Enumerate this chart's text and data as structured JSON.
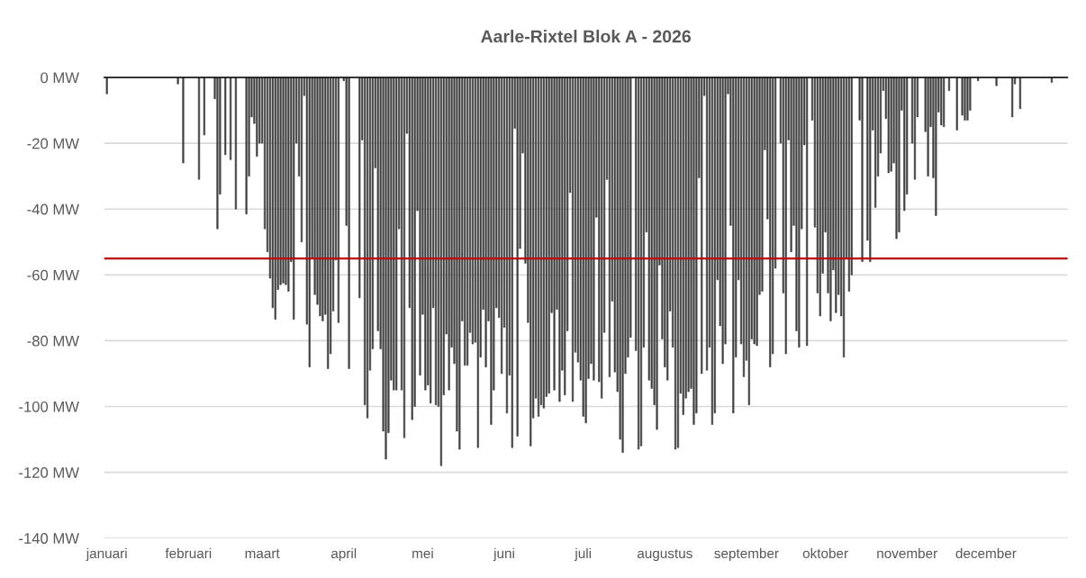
{
  "chart_data": {
    "type": "bar",
    "title": "Aarle-Rixtel Blok A - 2026",
    "x": [
      "2026-01-01",
      "2026-01-02",
      "2026-01-03",
      "2026-01-04",
      "2026-01-05",
      "2026-01-06",
      "2026-01-07",
      "2026-01-08",
      "2026-01-09",
      "2026-01-10",
      "2026-01-11",
      "2026-01-12",
      "2026-01-13",
      "2026-01-14",
      "2026-01-15",
      "2026-01-16",
      "2026-01-17",
      "2026-01-18",
      "2026-01-19",
      "2026-01-20",
      "2026-01-21",
      "2026-01-22",
      "2026-01-23",
      "2026-01-24",
      "2026-01-25",
      "2026-01-26",
      "2026-01-27",
      "2026-01-28",
      "2026-01-29",
      "2026-01-30",
      "2026-01-31",
      "2026-02-01",
      "2026-02-02",
      "2026-02-03",
      "2026-02-04",
      "2026-02-05",
      "2026-02-06",
      "2026-02-07",
      "2026-02-08",
      "2026-02-09",
      "2026-02-10",
      "2026-02-11",
      "2026-02-12",
      "2026-02-13",
      "2026-02-14",
      "2026-02-15",
      "2026-02-16",
      "2026-02-17",
      "2026-02-18",
      "2026-02-19",
      "2026-02-20",
      "2026-02-21",
      "2026-02-22",
      "2026-02-23",
      "2026-02-24",
      "2026-02-25",
      "2026-02-26",
      "2026-02-27",
      "2026-02-28",
      "2026-03-01",
      "2026-03-02",
      "2026-03-03",
      "2026-03-04",
      "2026-03-05",
      "2026-03-06",
      "2026-03-07",
      "2026-03-08",
      "2026-03-09",
      "2026-03-10",
      "2026-03-11",
      "2026-03-12",
      "2026-03-13",
      "2026-03-14",
      "2026-03-15",
      "2026-03-16",
      "2026-03-17",
      "2026-03-18",
      "2026-03-19",
      "2026-03-20",
      "2026-03-21",
      "2026-03-22",
      "2026-03-23",
      "2026-03-24",
      "2026-03-25",
      "2026-03-26",
      "2026-03-27",
      "2026-03-28",
      "2026-03-29",
      "2026-03-30",
      "2026-03-31",
      "2026-04-01",
      "2026-04-02",
      "2026-04-03",
      "2026-04-04",
      "2026-04-05",
      "2026-04-06",
      "2026-04-07",
      "2026-04-08",
      "2026-04-09",
      "2026-04-10",
      "2026-04-11",
      "2026-04-12",
      "2026-04-13",
      "2026-04-14",
      "2026-04-15",
      "2026-04-16",
      "2026-04-17",
      "2026-04-18",
      "2026-04-19",
      "2026-04-20",
      "2026-04-21",
      "2026-04-22",
      "2026-04-23",
      "2026-04-24",
      "2026-04-25",
      "2026-04-26",
      "2026-04-27",
      "2026-04-28",
      "2026-04-29",
      "2026-04-30",
      "2026-05-01",
      "2026-05-02",
      "2026-05-03",
      "2026-05-04",
      "2026-05-05",
      "2026-05-06",
      "2026-05-07",
      "2026-05-08",
      "2026-05-09",
      "2026-05-10",
      "2026-05-11",
      "2026-05-12",
      "2026-05-13",
      "2026-05-14",
      "2026-05-15",
      "2026-05-16",
      "2026-05-17",
      "2026-05-18",
      "2026-05-19",
      "2026-05-20",
      "2026-05-21",
      "2026-05-22",
      "2026-05-23",
      "2026-05-24",
      "2026-05-25",
      "2026-05-26",
      "2026-05-27",
      "2026-05-28",
      "2026-05-29",
      "2026-05-30",
      "2026-05-31",
      "2026-06-01",
      "2026-06-02",
      "2026-06-03",
      "2026-06-04",
      "2026-06-05",
      "2026-06-06",
      "2026-06-07",
      "2026-06-08",
      "2026-06-09",
      "2026-06-10",
      "2026-06-11",
      "2026-06-12",
      "2026-06-13",
      "2026-06-14",
      "2026-06-15",
      "2026-06-16",
      "2026-06-17",
      "2026-06-18",
      "2026-06-19",
      "2026-06-20",
      "2026-06-21",
      "2026-06-22",
      "2026-06-23",
      "2026-06-24",
      "2026-06-25",
      "2026-06-26",
      "2026-06-27",
      "2026-06-28",
      "2026-06-29",
      "2026-06-30",
      "2026-07-01",
      "2026-07-02",
      "2026-07-03",
      "2026-07-04",
      "2026-07-05",
      "2026-07-06",
      "2026-07-07",
      "2026-07-08",
      "2026-07-09",
      "2026-07-10",
      "2026-07-11",
      "2026-07-12",
      "2026-07-13",
      "2026-07-14",
      "2026-07-15",
      "2026-07-16",
      "2026-07-17",
      "2026-07-18",
      "2026-07-19",
      "2026-07-20",
      "2026-07-21",
      "2026-07-22",
      "2026-07-23",
      "2026-07-24",
      "2026-07-25",
      "2026-07-26",
      "2026-07-27",
      "2026-07-28",
      "2026-07-29",
      "2026-07-30",
      "2026-07-31",
      "2026-08-01",
      "2026-08-02",
      "2026-08-03",
      "2026-08-04",
      "2026-08-05",
      "2026-08-06",
      "2026-08-07",
      "2026-08-08",
      "2026-08-09",
      "2026-08-10",
      "2026-08-11",
      "2026-08-12",
      "2026-08-13",
      "2026-08-14",
      "2026-08-15",
      "2026-08-16",
      "2026-08-17",
      "2026-08-18",
      "2026-08-19",
      "2026-08-20",
      "2026-08-21",
      "2026-08-22",
      "2026-08-23",
      "2026-08-24",
      "2026-08-25",
      "2026-08-26",
      "2026-08-27",
      "2026-08-28",
      "2026-08-29",
      "2026-08-30",
      "2026-08-31",
      "2026-09-01",
      "2026-09-02",
      "2026-09-03",
      "2026-09-04",
      "2026-09-05",
      "2026-09-06",
      "2026-09-07",
      "2026-09-08",
      "2026-09-09",
      "2026-09-10",
      "2026-09-11",
      "2026-09-12",
      "2026-09-13",
      "2026-09-14",
      "2026-09-15",
      "2026-09-16",
      "2026-09-17",
      "2026-09-18",
      "2026-09-19",
      "2026-09-20",
      "2026-09-21",
      "2026-09-22",
      "2026-09-23",
      "2026-09-24",
      "2026-09-25",
      "2026-09-26",
      "2026-09-27",
      "2026-09-28",
      "2026-09-29",
      "2026-09-30",
      "2026-10-01",
      "2026-10-02",
      "2026-10-03",
      "2026-10-04",
      "2026-10-05",
      "2026-10-06",
      "2026-10-07",
      "2026-10-08",
      "2026-10-09",
      "2026-10-10",
      "2026-10-11",
      "2026-10-12",
      "2026-10-13",
      "2026-10-14",
      "2026-10-15",
      "2026-10-16",
      "2026-10-17",
      "2026-10-18",
      "2026-10-19",
      "2026-10-20",
      "2026-10-21",
      "2026-10-22",
      "2026-10-23",
      "2026-10-24",
      "2026-10-25",
      "2026-10-26",
      "2026-10-27",
      "2026-10-28",
      "2026-10-29",
      "2026-10-30",
      "2026-10-31",
      "2026-11-01",
      "2026-11-02",
      "2026-11-03",
      "2026-11-04",
      "2026-11-05",
      "2026-11-06",
      "2026-11-07",
      "2026-11-08",
      "2026-11-09",
      "2026-11-10",
      "2026-11-11",
      "2026-11-12",
      "2026-11-13",
      "2026-11-14",
      "2026-11-15",
      "2026-11-16",
      "2026-11-17",
      "2026-11-18",
      "2026-11-19",
      "2026-11-20",
      "2026-11-21",
      "2026-11-22",
      "2026-11-23",
      "2026-11-24",
      "2026-11-25",
      "2026-11-26",
      "2026-11-27",
      "2026-11-28",
      "2026-11-29",
      "2026-11-30",
      "2026-12-01",
      "2026-12-02",
      "2026-12-03",
      "2026-12-04",
      "2026-12-05",
      "2026-12-06",
      "2026-12-07",
      "2026-12-08",
      "2026-12-09",
      "2026-12-10",
      "2026-12-11",
      "2026-12-12",
      "2026-12-13",
      "2026-12-14",
      "2026-12-15",
      "2026-12-16",
      "2026-12-17",
      "2026-12-18",
      "2026-12-19",
      "2026-12-20",
      "2026-12-21",
      "2026-12-22",
      "2026-12-23",
      "2026-12-24",
      "2026-12-25",
      "2026-12-26",
      "2026-12-27",
      "2026-12-28",
      "2026-12-29",
      "2026-12-30",
      "2026-12-31"
    ],
    "series": [
      {
        "color": "#404040",
        "values": [
          -5,
          0,
          0,
          0,
          0,
          0,
          0,
          0,
          0,
          0,
          0,
          0,
          0,
          0,
          0,
          0,
          0,
          0,
          0,
          0,
          0,
          0,
          0,
          0,
          0,
          0,
          0,
          -2,
          0,
          -26,
          0,
          0,
          0,
          0,
          0,
          -31,
          0,
          -17.5,
          0,
          0,
          0,
          -6.5,
          -46,
          -35.5,
          0,
          -23.5,
          0,
          -25,
          0,
          -40,
          0,
          0,
          0,
          -41.5,
          -30,
          -12,
          -14,
          -24,
          -20,
          -20,
          -46,
          -53,
          -61,
          -70,
          -73.5,
          -64.5,
          -63,
          -62.5,
          -63,
          -65,
          -56,
          -73.5,
          -20,
          -30,
          -50,
          -5.5,
          -75,
          -88,
          -55,
          -66,
          -69,
          -72.5,
          -74,
          -72,
          -88.5,
          -84,
          -71,
          -55.5,
          -74.5,
          0,
          -1,
          -45,
          -88.5,
          0,
          0,
          0,
          -67,
          -19,
          -99.5,
          -103.5,
          -89,
          -82.5,
          -27.5,
          -77,
          -82.5,
          -107.5,
          -116,
          -108,
          -92,
          -95,
          -95,
          -46,
          -95,
          -109.5,
          -17,
          -70,
          -104,
          -100,
          -40.5,
          -90.5,
          -72,
          -95,
          -93.5,
          -99,
          -70,
          -99.5,
          -100,
          -118,
          -96.5,
          -78,
          -95,
          -82,
          -87,
          -107.5,
          -113,
          -74,
          -87.5,
          -87.5,
          -77.5,
          -81,
          -80.5,
          -112.5,
          -85,
          -70.5,
          -88,
          -74,
          -105.5,
          -95,
          -70,
          -73,
          -90,
          -76,
          -102,
          -90.5,
          -112.5,
          -15.5,
          -109,
          -52,
          -23,
          -56.5,
          -74.5,
          -112,
          -103.5,
          -97.5,
          -103,
          -99.5,
          -100.5,
          -97,
          -96,
          -71.5,
          -95,
          -70.5,
          -98.5,
          -89,
          -96.5,
          -77,
          -35,
          -98.5,
          -83.5,
          -86.5,
          -92,
          -103,
          -105,
          -91.5,
          -87,
          -92,
          -42.5,
          -92.5,
          -97.5,
          -77.5,
          -31,
          -91,
          -68,
          -89.5,
          -95.5,
          -110,
          -114,
          -90,
          -85,
          -79,
          0,
          -83,
          -113,
          -112,
          -82,
          -47,
          -92,
          -94.5,
          -99.5,
          -107,
          -57,
          -79.5,
          -88,
          -92,
          -71,
          -82,
          -113,
          -112.5,
          -96,
          -102.5,
          -97.5,
          -95.5,
          -94.5,
          -105.5,
          -102,
          -30.5,
          -90,
          -5.5,
          -89,
          -82,
          -105.5,
          -102,
          -61.5,
          -75.5,
          -87,
          -81,
          -5,
          -45,
          -102,
          -85,
          -61.5,
          -81,
          -91,
          -86,
          -99.5,
          -79.5,
          -81,
          -81.5,
          -66,
          -65,
          -22,
          -43,
          -88,
          -84,
          -58,
          0,
          -20,
          -65.5,
          -84,
          -19,
          -53,
          -45,
          -77,
          -82,
          -46,
          -20.5,
          -81.5,
          0,
          -13,
          -45.5,
          -65.5,
          -72.5,
          -59.5,
          -47,
          -65.5,
          -74,
          -58.5,
          -71.5,
          -66,
          -72.5,
          -85,
          -55,
          -65,
          -60,
          0,
          0,
          -13,
          -56,
          0,
          -49.5,
          -56,
          -16,
          -39.5,
          -30,
          -23,
          -4,
          -12.5,
          -29,
          -28.5,
          -26,
          -49,
          -47,
          -10,
          -40.5,
          -35.5,
          0,
          -20,
          -31,
          -12,
          0,
          0,
          -16.5,
          -30,
          -15,
          -30.5,
          -42,
          -10.5,
          -14.5,
          -15,
          0,
          -4,
          0,
          0,
          -16,
          0,
          -11.5,
          -13,
          -13,
          -10,
          0,
          0,
          -1,
          0,
          0,
          0,
          0,
          0,
          0,
          -2.5,
          0,
          0,
          0,
          0,
          0,
          -12,
          -2,
          0,
          -9.5,
          0,
          0,
          0,
          0,
          0,
          0,
          0,
          0,
          0,
          0,
          0,
          -1.5,
          0,
          0,
          0,
          0,
          0
        ]
      }
    ],
    "xlim": [
      "2025-12-31",
      "2027-01-01"
    ],
    "xticks": [
      {
        "value": "2026-01-01",
        "label": "januari"
      },
      {
        "value": "2026-02-01",
        "label": "februari"
      },
      {
        "value": "2026-03-01",
        "label": "maart"
      },
      {
        "value": "2026-04-01",
        "label": "april"
      },
      {
        "value": "2026-05-01",
        "label": "mei"
      },
      {
        "value": "2026-06-01",
        "label": "juni"
      },
      {
        "value": "2026-07-01",
        "label": "juli"
      },
      {
        "value": "2026-08-01",
        "label": "augustus"
      },
      {
        "value": "2026-09-01",
        "label": "september"
      },
      {
        "value": "2026-10-01",
        "label": "oktober"
      },
      {
        "value": "2026-11-01",
        "label": "november"
      },
      {
        "value": "2026-12-01",
        "label": "december"
      }
    ],
    "ylim": [
      -140,
      0
    ],
    "yticks": [
      {
        "value": 0,
        "label": "0 MW"
      },
      {
        "value": -20,
        "label": "-20 MW"
      },
      {
        "value": -40,
        "label": "-40 MW"
      },
      {
        "value": -60,
        "label": "-60 MW"
      },
      {
        "value": -80,
        "label": "-80 MW"
      },
      {
        "value": -100,
        "label": "-100 MW"
      },
      {
        "value": -120,
        "label": "-120 MW"
      },
      {
        "value": -140,
        "label": "-140 MW"
      }
    ],
    "ref_lines": [
      {
        "axis": "y",
        "value": -55,
        "color": "#c00000"
      }
    ],
    "grid": "y"
  }
}
